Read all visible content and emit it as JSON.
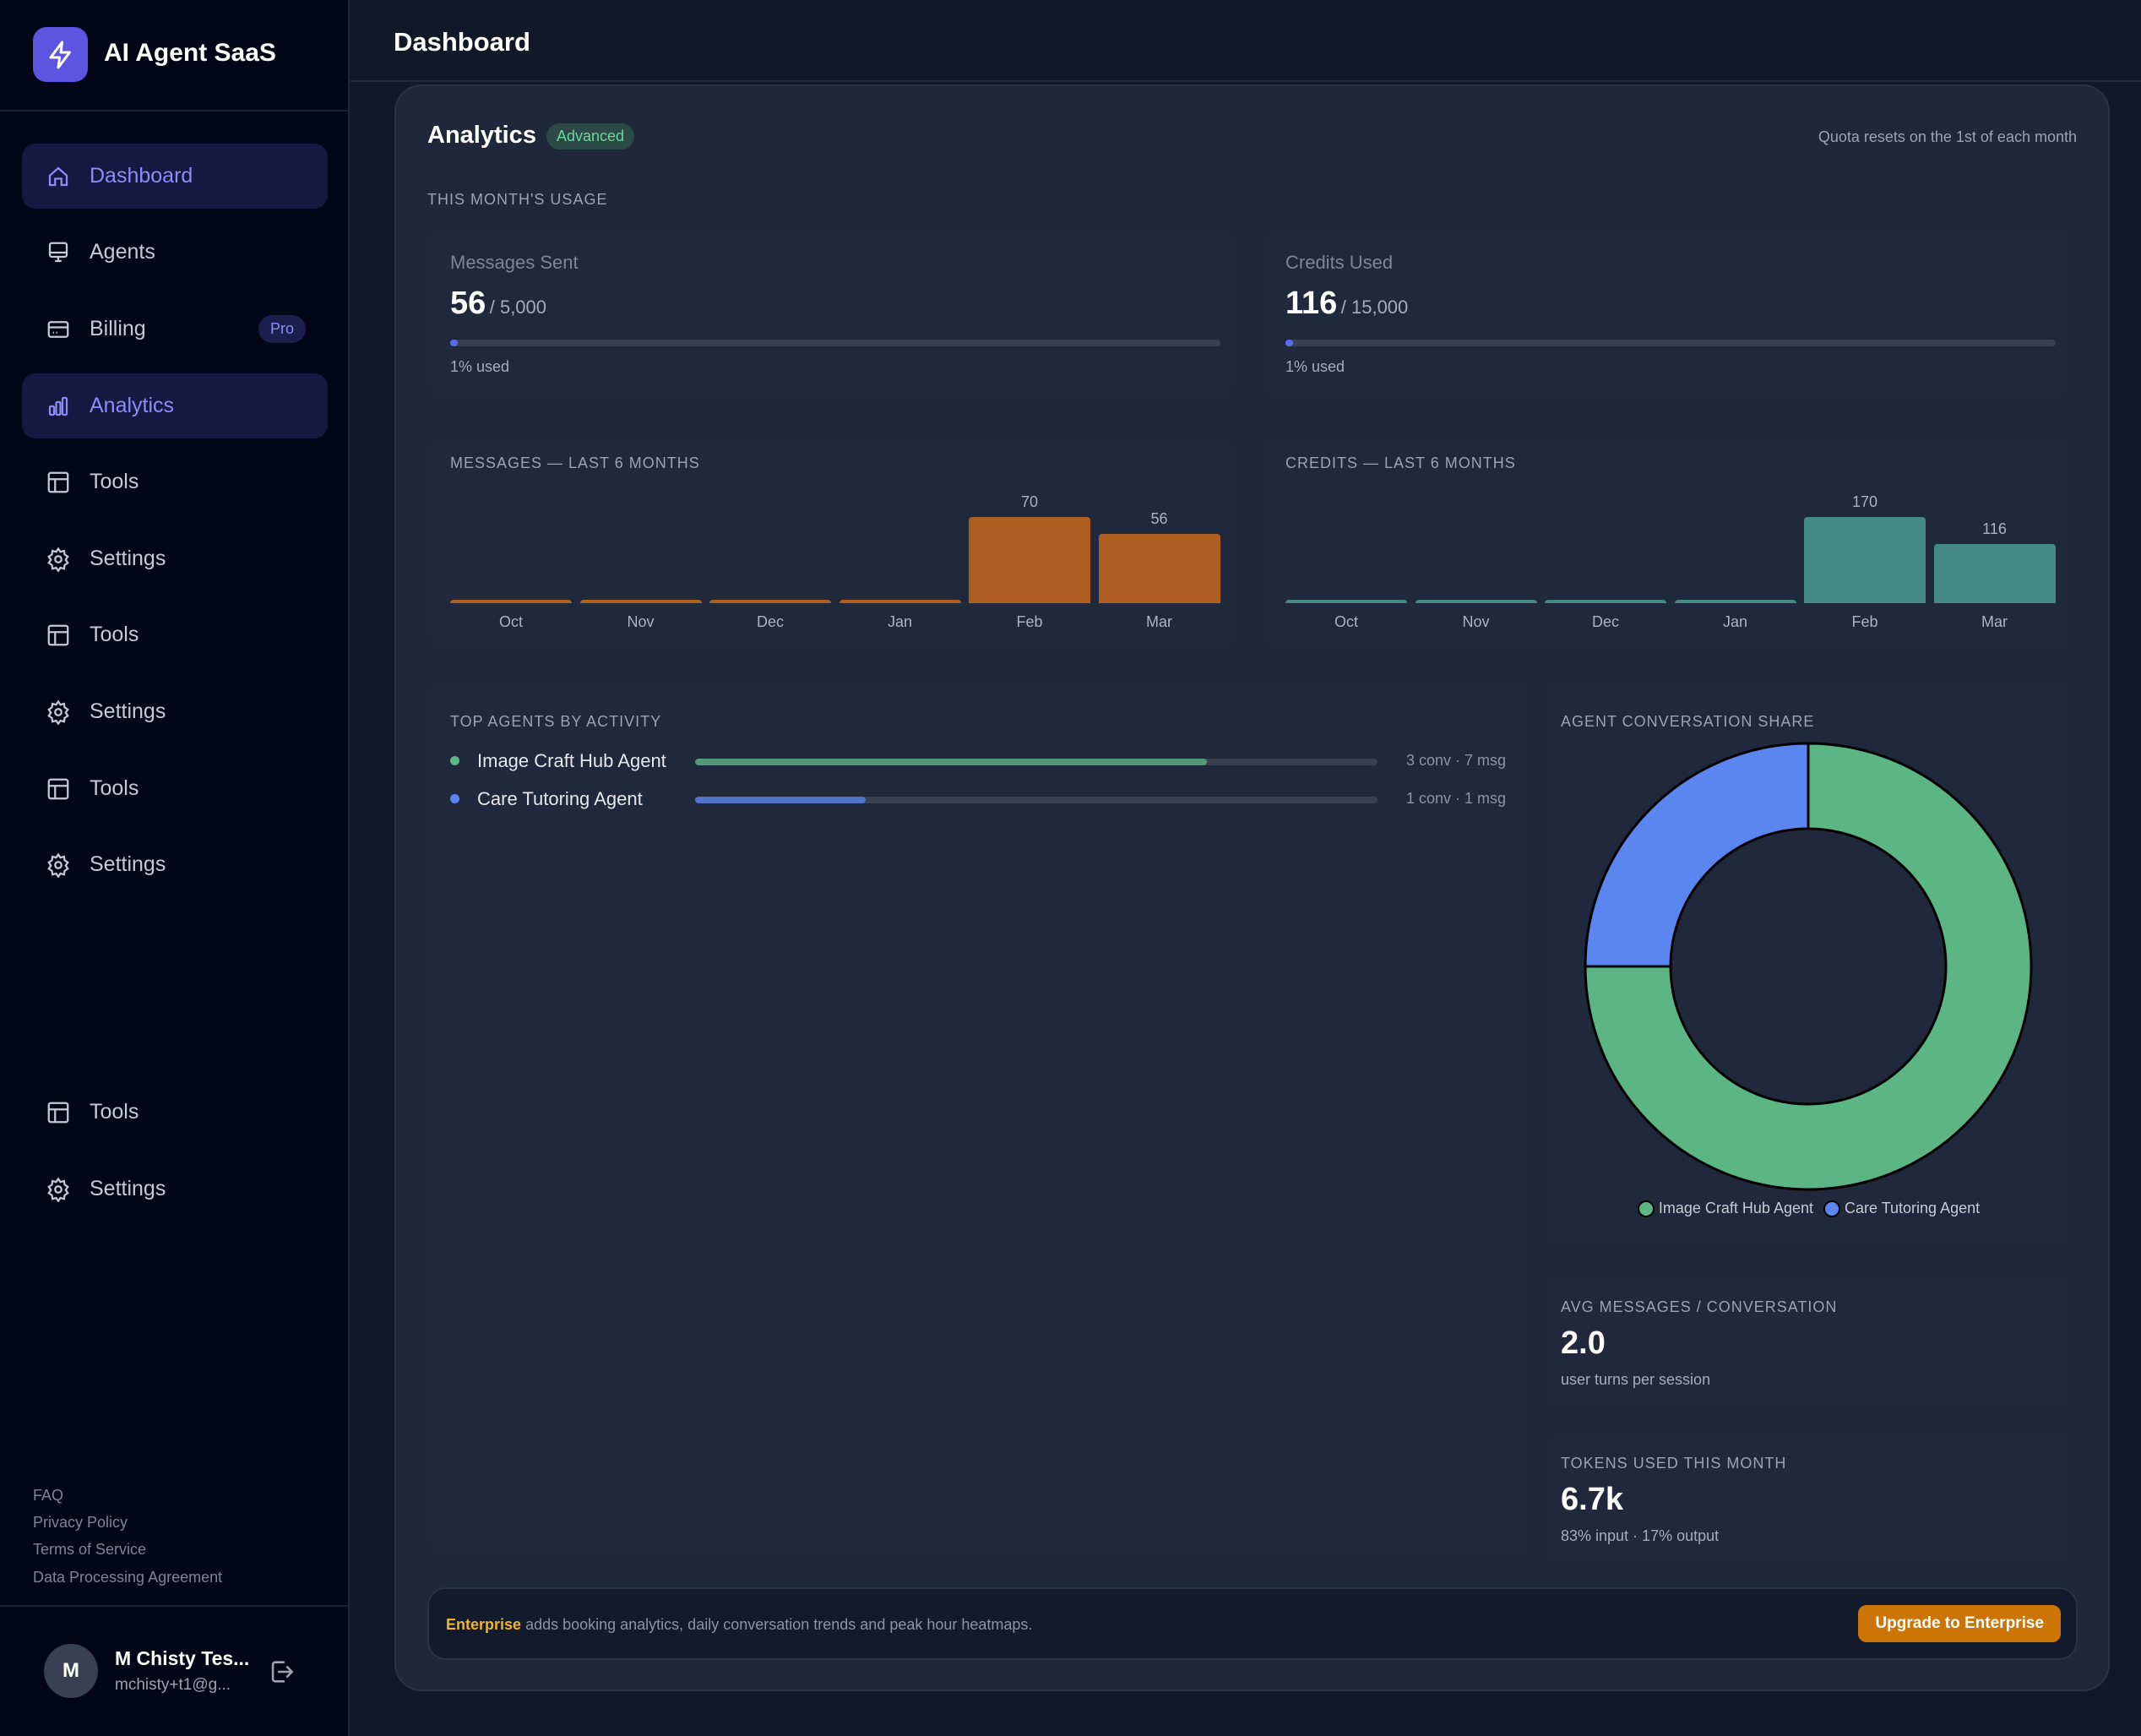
{
  "app": {
    "name": "AI Agent SaaS",
    "logo_icon": "lightning-icon"
  },
  "sidebar": {
    "items": [
      {
        "label": "Dashboard",
        "icon": "home-icon",
        "active": true
      },
      {
        "label": "Agents",
        "icon": "monitor-icon"
      },
      {
        "label": "Billing",
        "icon": "card-icon",
        "badge": "Pro"
      },
      {
        "label": "Analytics",
        "icon": "bar-chart-icon",
        "active": true
      },
      {
        "label": "Tools",
        "icon": "table-icon"
      },
      {
        "label": "Settings",
        "icon": "gear-icon"
      },
      {
        "label": "Tools",
        "icon": "table-icon"
      },
      {
        "label": "Settings",
        "icon": "gear-icon"
      },
      {
        "label": "Tools",
        "icon": "table-icon"
      },
      {
        "label": "Settings",
        "icon": "gear-icon"
      },
      {
        "label": "Tools",
        "icon": "table-icon"
      },
      {
        "label": "Settings",
        "icon": "gear-icon"
      }
    ],
    "footer_links": [
      "FAQ",
      "Privacy Policy",
      "Terms of Service",
      "Data Processing Agreement"
    ],
    "user": {
      "initial": "M",
      "name": "M Chisty Tes...",
      "email": "mchisty+t1@g..."
    }
  },
  "header": {
    "title": "Dashboard"
  },
  "analytics": {
    "title": "Analytics",
    "badge": "Advanced",
    "quota_note": "Quota resets on the 1st of each month",
    "usage_label": "THIS MONTH'S USAGE",
    "messages": {
      "label": "Messages Sent",
      "value": "56",
      "limit": "/ 5,000",
      "percent": 1,
      "used": "1% used"
    },
    "credits": {
      "label": "Credits Used",
      "value": "116",
      "limit": "/ 15,000",
      "percent": 1,
      "used": "1% used"
    },
    "top_agents_label": "TOP AGENTS BY ACTIVITY",
    "agents": [
      {
        "name": "Image Craft Hub Agent",
        "stats": "3 conv · 7 msg",
        "fill": 0.75,
        "color": "#5cb585"
      },
      {
        "name": "Care Tutoring Agent",
        "stats": "1 conv · 1 msg",
        "fill": 0.25,
        "color": "#5b86f0"
      }
    ],
    "share_label": "AGENT CONVERSATION SHARE",
    "avg": {
      "label": "AVG MESSAGES / CONVERSATION",
      "value": "2.0",
      "sub": "user turns per session"
    },
    "tokens": {
      "label": "TOKENS USED THIS MONTH",
      "value": "6.7k",
      "sub": "83% input · 17% output"
    },
    "banner": {
      "highlight": "Enterprise",
      "text": "adds booking analytics, daily conversation trends and peak hour heatmaps.",
      "button": "Upgrade to Enterprise"
    }
  },
  "chart_data": [
    {
      "type": "bar",
      "title": "MESSAGES — LAST 6 MONTHS",
      "categories": [
        "Oct",
        "Nov",
        "Dec",
        "Jan",
        "Feb",
        "Mar"
      ],
      "values": [
        0,
        0,
        0,
        0,
        70,
        56
      ],
      "color": "#b05f22"
    },
    {
      "type": "bar",
      "title": "CREDITS — LAST 6 MONTHS",
      "categories": [
        "Oct",
        "Nov",
        "Dec",
        "Jan",
        "Feb",
        "Mar"
      ],
      "values": [
        0,
        0,
        0,
        0,
        170,
        116
      ],
      "color": "#438a84"
    },
    {
      "type": "pie",
      "title": "AGENT CONVERSATION SHARE",
      "categories": [
        "Image Craft Hub Agent",
        "Care Tutoring Agent"
      ],
      "values": [
        3,
        1
      ],
      "colors": [
        "#5cb585",
        "#5b86f0"
      ],
      "legend": "bottom",
      "donut": true
    }
  ]
}
